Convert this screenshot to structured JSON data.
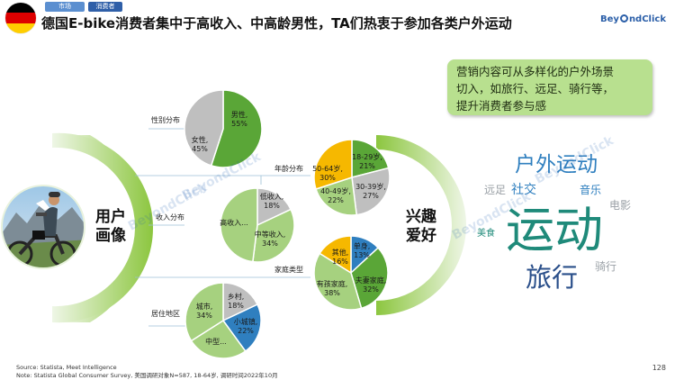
{
  "tags": [
    "市场",
    "消费者"
  ],
  "title": "德国E-bike消费者集中于高收入、中高龄男性，TA们热衷于参加各类户外运动",
  "logo": {
    "pre": "Bey",
    "post": "ndClick"
  },
  "callout": [
    "营销内容可从多样化的户外场景",
    "切入，如旅行、远足、骑行等，",
    "提升消费者参与感"
  ],
  "center_left": [
    "用户",
    "画像"
  ],
  "center_right": [
    "兴趣",
    "爱好"
  ],
  "watermark": "BeyondClick",
  "source": [
    "Source: Statista, Meet Intelligence",
    "Note: Statista Global Consumer Survey, 美国调研对象N=587, 18-64岁, 调研时间2022年10月"
  ],
  "page_number": "128",
  "colors": {
    "green": "#5aa637",
    "lightgreen": "#a6d17f",
    "gray": "#bfbfbf",
    "yellow": "#f6b800",
    "blue": "#2f7fbf",
    "navy": "#2a4f8a",
    "teal": "#1f8a7a",
    "gray_word": "#9aa0a6"
  },
  "chart_data": [
    {
      "type": "pie",
      "title": "性别分布",
      "labels": [
        "男性",
        "女性"
      ],
      "values": [
        55,
        45
      ],
      "data_labels": [
        [
          "男性,",
          "55%"
        ],
        [
          "女性,",
          "45%"
        ]
      ]
    },
    {
      "type": "pie",
      "title": "年龄分布",
      "labels": [
        "18-29岁",
        "30-39岁",
        "40-49岁",
        "50-64岁"
      ],
      "values": [
        21,
        27,
        22,
        30
      ],
      "data_labels": [
        [
          "18-29岁,",
          "21%"
        ],
        [
          "30-39岁,",
          "27%"
        ],
        [
          "40-49岁,",
          "22%"
        ],
        [
          "50-64岁,",
          "30%"
        ]
      ]
    },
    {
      "type": "pie",
      "title": "收入分布",
      "labels": [
        "低收入",
        "中等收入",
        "高收入"
      ],
      "values": [
        18,
        34,
        48
      ],
      "data_labels": [
        [
          "低收入,",
          "18%"
        ],
        [
          "中等收入,",
          "34%"
        ],
        [
          "高收入..."
        ]
      ]
    },
    {
      "type": "pie",
      "title": "家庭类型",
      "labels": [
        "单身",
        "夫妻家庭",
        "有孩家庭",
        "其他"
      ],
      "values": [
        13,
        32,
        38,
        16
      ],
      "data_labels": [
        [
          "单身,",
          "13%"
        ],
        [
          "夫妻家庭,",
          "32%"
        ],
        [
          "有孩家庭,",
          "38%"
        ],
        [
          "其他,",
          "16%"
        ]
      ]
    },
    {
      "type": "pie",
      "title": "居住地区",
      "labels": [
        "乡村",
        "小城镇",
        "中型城市",
        "城市"
      ],
      "values": [
        18,
        22,
        26,
        34
      ],
      "data_labels": [
        [
          "乡村,",
          "18%"
        ],
        [
          "小城镇,",
          "22%"
        ],
        [
          "中型..."
        ],
        [
          "城市,",
          "34%"
        ]
      ]
    }
  ],
  "word_cloud": [
    {
      "text": "运动",
      "color": "#1f8a7a"
    },
    {
      "text": "户外运动",
      "color": "#2f7fbf"
    },
    {
      "text": "旅行",
      "color": "#2a4f8a"
    },
    {
      "text": "社交",
      "color": "#2f7fbf"
    },
    {
      "text": "远足",
      "color": "#9aa0a6"
    },
    {
      "text": "音乐",
      "color": "#2f7fbf"
    },
    {
      "text": "电影",
      "color": "#9aa0a6"
    },
    {
      "text": "美食",
      "color": "#1f8a7a"
    },
    {
      "text": "骑行",
      "color": "#9aa0a6"
    }
  ]
}
